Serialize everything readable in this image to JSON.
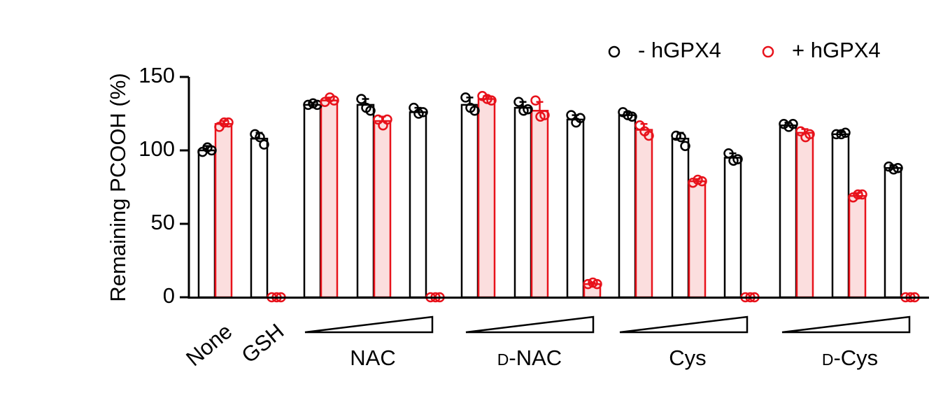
{
  "chart_data": {
    "type": "bar",
    "ylabel": "Remaining PCOOH (%)",
    "ylim": [
      0,
      150
    ],
    "yticks": [
      0,
      50,
      100,
      150
    ],
    "legend_position": "top-right",
    "colors": {
      "minus": "#000000",
      "plus": "#e8121b",
      "plus_fill": "#fbdede"
    },
    "series": [
      {
        "name": "- hGPX4",
        "key": "minus"
      },
      {
        "name": "+ hGPX4",
        "key": "plus"
      }
    ],
    "standalone_labels": [
      "None",
      "GSH"
    ],
    "group_labels": [
      {
        "prefix": "",
        "text": "NAC"
      },
      {
        "prefix": "D",
        "text": "-NAC"
      },
      {
        "prefix": "",
        "text": "Cys"
      },
      {
        "prefix": "D",
        "text": "-Cys"
      }
    ],
    "bars": [
      {
        "id": "none",
        "minus": {
          "mean": 100,
          "sd": 3,
          "points": [
            99,
            102,
            100
          ]
        },
        "plus": {
          "mean": 118,
          "sd": 2,
          "points": [
            116,
            119,
            119
          ]
        }
      },
      {
        "id": "gsh",
        "minus": {
          "mean": 108,
          "sd": 4,
          "points": [
            111,
            109,
            104
          ]
        },
        "plus": {
          "mean": 0,
          "sd": 0,
          "points": [
            0,
            0,
            0
          ]
        }
      },
      {
        "id": "nac-1",
        "minus": {
          "mean": 131,
          "sd": 1.5,
          "points": [
            131,
            132,
            131
          ]
        },
        "plus": {
          "mean": 134,
          "sd": 2,
          "points": [
            133,
            136,
            134
          ]
        }
      },
      {
        "id": "nac-2",
        "minus": {
          "mean": 131,
          "sd": 4,
          "points": [
            135,
            129,
            127
          ]
        },
        "plus": {
          "mean": 120,
          "sd": 3,
          "points": [
            121,
            117,
            121
          ]
        }
      },
      {
        "id": "nac-3",
        "minus": {
          "mean": 126,
          "sd": 3,
          "points": [
            129,
            125,
            126
          ]
        },
        "plus": {
          "mean": 0,
          "sd": 0,
          "points": [
            0,
            0,
            0
          ]
        }
      },
      {
        "id": "dnac-1",
        "minus": {
          "mean": 131,
          "sd": 5,
          "points": [
            136,
            129,
            127
          ]
        },
        "plus": {
          "mean": 135,
          "sd": 2,
          "points": [
            137,
            135,
            134
          ]
        }
      },
      {
        "id": "dnac-2",
        "minus": {
          "mean": 129,
          "sd": 4,
          "points": [
            133,
            127,
            128
          ]
        },
        "plus": {
          "mean": 127,
          "sd": 6,
          "points": [
            134,
            123,
            124
          ]
        }
      },
      {
        "id": "dnac-3",
        "minus": {
          "mean": 121,
          "sd": 3,
          "points": [
            124,
            119,
            122
          ]
        },
        "plus": {
          "mean": 9,
          "sd": 1,
          "points": [
            9,
            10,
            9
          ]
        }
      },
      {
        "id": "cys-1",
        "minus": {
          "mean": 124,
          "sd": 2,
          "points": [
            126,
            124,
            123
          ]
        },
        "plus": {
          "mean": 114,
          "sd": 4,
          "points": [
            117,
            113,
            110
          ]
        }
      },
      {
        "id": "cys-2",
        "minus": {
          "mean": 108,
          "sd": 4,
          "points": [
            110,
            109,
            103
          ]
        },
        "plus": {
          "mean": 79,
          "sd": 1.5,
          "points": [
            78,
            80,
            79
          ]
        }
      },
      {
        "id": "cys-3",
        "minus": {
          "mean": 95,
          "sd": 3,
          "points": [
            98,
            93,
            94
          ]
        },
        "plus": {
          "mean": 0,
          "sd": 0,
          "points": [
            0,
            0,
            0
          ]
        }
      },
      {
        "id": "dcys-1",
        "minus": {
          "mean": 117,
          "sd": 2,
          "points": [
            118,
            116,
            118
          ]
        },
        "plus": {
          "mean": 112,
          "sd": 2.5,
          "points": [
            113,
            109,
            111
          ]
        }
      },
      {
        "id": "dcys-2",
        "minus": {
          "mean": 111,
          "sd": 1.5,
          "points": [
            111,
            111,
            112
          ]
        },
        "plus": {
          "mean": 69,
          "sd": 2,
          "points": [
            68,
            70,
            70
          ]
        }
      },
      {
        "id": "dcys-3",
        "minus": {
          "mean": 88,
          "sd": 2,
          "points": [
            89,
            87,
            88
          ]
        },
        "plus": {
          "mean": 0,
          "sd": 0,
          "points": [
            0,
            0,
            0
          ]
        }
      }
    ]
  }
}
